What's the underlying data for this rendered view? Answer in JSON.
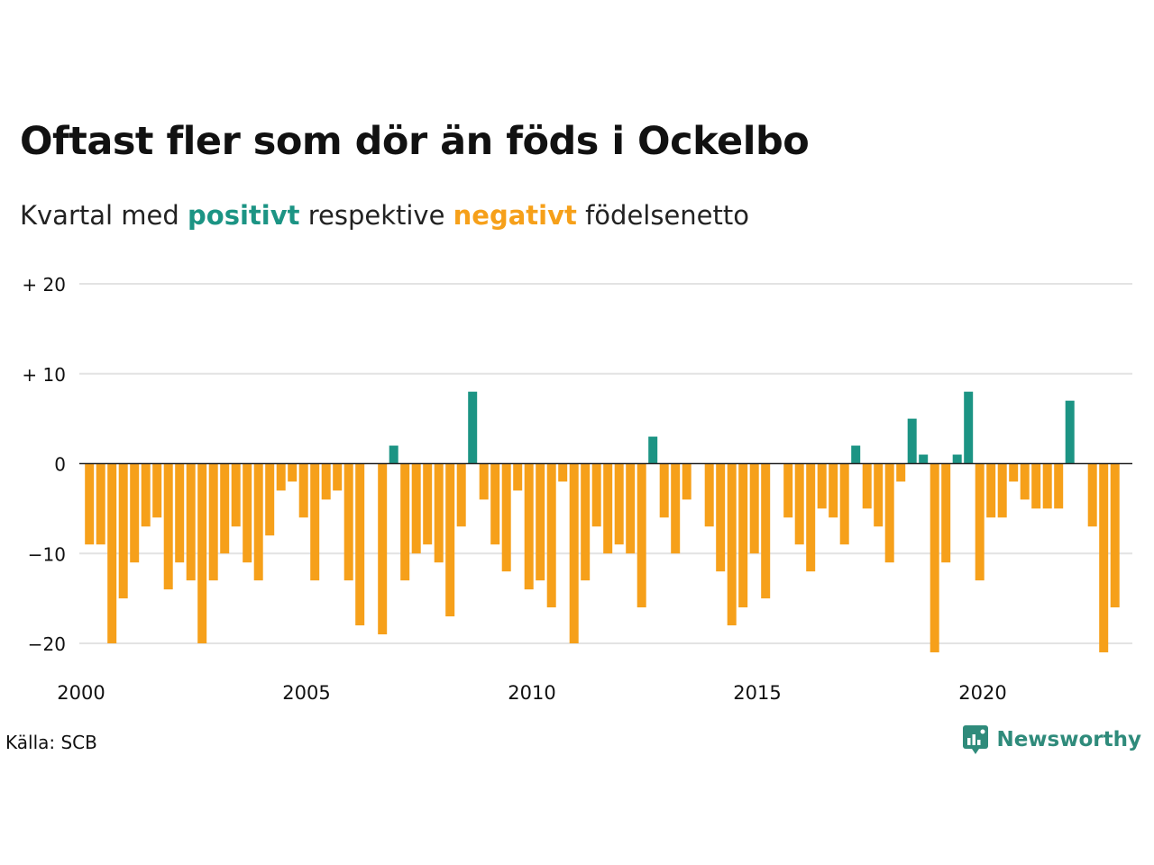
{
  "title": "Oftast fler som dör än föds i Ockelbo",
  "subtitle": {
    "prefix": "Kvartal med",
    "positive_word": "positivt",
    "middle": "respektive",
    "negative_word": "negativt",
    "suffix": "födelsenetto"
  },
  "source": "Källa: SCB",
  "brand": {
    "name": "Newsworthy",
    "icon": "newsworthy-logo-icon"
  },
  "colors": {
    "positive": "#1c9484",
    "negative": "#f6a01a",
    "grid": "#e3e3e3",
    "zero_line": "#222222"
  },
  "chart_data": {
    "type": "bar",
    "x_start": 2000,
    "x_step": 0.25,
    "ylim": [
      -20,
      20
    ],
    "y_ticks": [
      20,
      10,
      0,
      -10,
      -20
    ],
    "y_tick_labels": [
      "+ 20",
      "+ 10",
      "0",
      "−10",
      "−20"
    ],
    "x_ticks": [
      2000,
      2005,
      2010,
      2015,
      2020
    ],
    "x_tick_labels": [
      "2000",
      "2005",
      "2010",
      "2015",
      "2020"
    ],
    "grid": true,
    "values": [
      -9,
      -9,
      -20,
      -15,
      -11,
      -7,
      -6,
      -14,
      -11,
      -13,
      -20,
      -13,
      -10,
      -7,
      -11,
      -13,
      -8,
      -3,
      -2,
      -6,
      -13,
      -4,
      -3,
      -13,
      -18,
      0,
      -19,
      2,
      -13,
      -10,
      -9,
      -11,
      -17,
      -7,
      8,
      -4,
      -9,
      -12,
      -3,
      -14,
      -13,
      -16,
      -2,
      -20,
      -13,
      -7,
      -10,
      -9,
      -10,
      -16,
      3,
      -6,
      -10,
      -4,
      0,
      -7,
      -12,
      -18,
      -16,
      -10,
      -15,
      0,
      -6,
      -9,
      -12,
      -5,
      -6,
      -9,
      2,
      -5,
      -7,
      -11,
      -2,
      5,
      1,
      -21,
      -11,
      1,
      8,
      -13,
      -6,
      -6,
      -2,
      -4,
      -5,
      -5,
      -5,
      7,
      0,
      -7,
      -21,
      -16
    ]
  }
}
